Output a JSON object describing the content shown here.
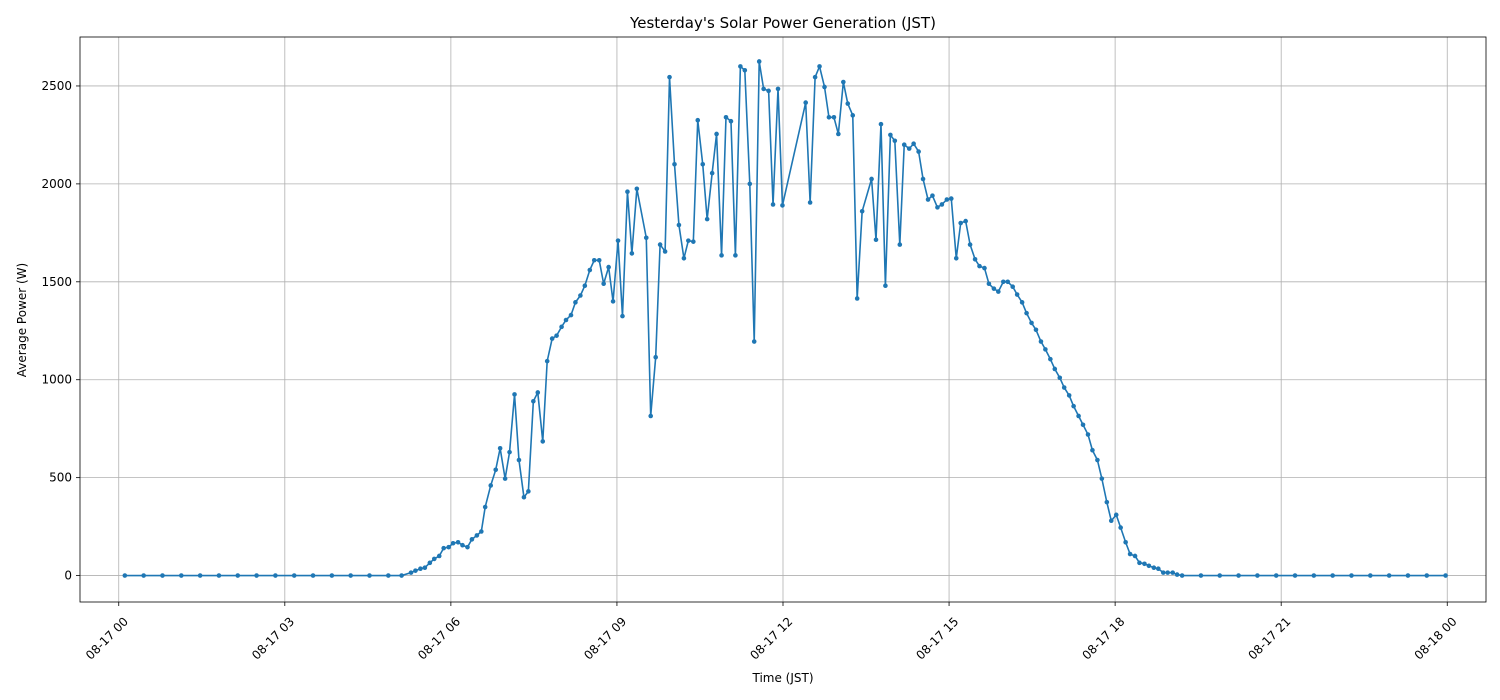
{
  "chart_data": {
    "type": "line",
    "title": "Yesterday's Solar Power Generation (JST)",
    "xlabel": "Time (JST)",
    "ylabel": "Average Power (W)",
    "x_unit": "hours since 08-17 00:00",
    "xlim": [
      -0.7,
      24.7
    ],
    "ylim": [
      -135,
      2750
    ],
    "x_ticks": [
      {
        "value": 0,
        "label": "08-17 00"
      },
      {
        "value": 3,
        "label": "08-17 03"
      },
      {
        "value": 6,
        "label": "08-17 06"
      },
      {
        "value": 9,
        "label": "08-17 09"
      },
      {
        "value": 12,
        "label": "08-17 12"
      },
      {
        "value": 15,
        "label": "08-17 15"
      },
      {
        "value": 18,
        "label": "08-17 18"
      },
      {
        "value": 21,
        "label": "08-17 21"
      },
      {
        "value": 24,
        "label": "08-18 00"
      }
    ],
    "y_ticks": [
      {
        "value": 0,
        "label": "0"
      },
      {
        "value": 500,
        "label": "500"
      },
      {
        "value": 1000,
        "label": "1000"
      },
      {
        "value": 1500,
        "label": "1500"
      },
      {
        "value": 2000,
        "label": "2000"
      },
      {
        "value": 2500,
        "label": "2500"
      }
    ],
    "grid": true,
    "marker": "circle",
    "color": "#1f77b4",
    "series": [
      {
        "points": [
          [
            0.11,
            0
          ],
          [
            0.45,
            0
          ],
          [
            0.79,
            0
          ],
          [
            1.13,
            0
          ],
          [
            1.47,
            0
          ],
          [
            1.81,
            0
          ],
          [
            2.15,
            0
          ],
          [
            2.49,
            0
          ],
          [
            2.83,
            0
          ],
          [
            3.17,
            0
          ],
          [
            3.51,
            0
          ],
          [
            3.85,
            0
          ],
          [
            4.19,
            0
          ],
          [
            4.53,
            0
          ],
          [
            4.87,
            0
          ],
          [
            5.11,
            0
          ],
          [
            5.28,
            15
          ],
          [
            5.36,
            25
          ],
          [
            5.45,
            35
          ],
          [
            5.53,
            40
          ],
          [
            5.62,
            65
          ],
          [
            5.7,
            85
          ],
          [
            5.79,
            100
          ],
          [
            5.87,
            140
          ],
          [
            5.96,
            145
          ],
          [
            6.04,
            165
          ],
          [
            6.13,
            170
          ],
          [
            6.21,
            155
          ],
          [
            6.3,
            145
          ],
          [
            6.38,
            185
          ],
          [
            6.47,
            205
          ],
          [
            6.55,
            225
          ],
          [
            6.62,
            350
          ],
          [
            6.72,
            460
          ],
          [
            6.81,
            540
          ],
          [
            6.89,
            650
          ],
          [
            6.98,
            495
          ],
          [
            7.06,
            630
          ],
          [
            7.15,
            925
          ],
          [
            7.23,
            590
          ],
          [
            7.32,
            400
          ],
          [
            7.4,
            430
          ],
          [
            7.49,
            890
          ],
          [
            7.57,
            935
          ],
          [
            7.66,
            685
          ],
          [
            7.74,
            1095
          ],
          [
            7.83,
            1210
          ],
          [
            7.91,
            1225
          ],
          [
            8.0,
            1270
          ],
          [
            8.08,
            1305
          ],
          [
            8.17,
            1330
          ],
          [
            8.25,
            1395
          ],
          [
            8.34,
            1430
          ],
          [
            8.42,
            1480
          ],
          [
            8.51,
            1560
          ],
          [
            8.59,
            1610
          ],
          [
            8.68,
            1610
          ],
          [
            8.76,
            1490
          ],
          [
            8.85,
            1575
          ],
          [
            8.93,
            1400
          ],
          [
            9.02,
            1710
          ],
          [
            9.1,
            1325
          ],
          [
            9.19,
            1960
          ],
          [
            9.27,
            1645
          ],
          [
            9.36,
            1975
          ],
          [
            9.53,
            1725
          ],
          [
            9.61,
            815
          ],
          [
            9.7,
            1115
          ],
          [
            9.78,
            1690
          ],
          [
            9.87,
            1655
          ],
          [
            9.95,
            2545
          ],
          [
            10.04,
            2100
          ],
          [
            10.12,
            1790
          ],
          [
            10.21,
            1620
          ],
          [
            10.29,
            1710
          ],
          [
            10.38,
            1705
          ],
          [
            10.46,
            2325
          ],
          [
            10.55,
            2100
          ],
          [
            10.63,
            1820
          ],
          [
            10.72,
            2055
          ],
          [
            10.8,
            2255
          ],
          [
            10.89,
            1635
          ],
          [
            10.97,
            2340
          ],
          [
            11.06,
            2320
          ],
          [
            11.14,
            1635
          ],
          [
            11.23,
            2600
          ],
          [
            11.31,
            2580
          ],
          [
            11.4,
            2000
          ],
          [
            11.48,
            1195
          ],
          [
            11.57,
            2625
          ],
          [
            11.65,
            2485
          ],
          [
            11.74,
            2475
          ],
          [
            11.82,
            1895
          ],
          [
            11.91,
            2485
          ],
          [
            11.99,
            1890
          ],
          [
            12.41,
            2415
          ],
          [
            12.49,
            1905
          ],
          [
            12.58,
            2545
          ],
          [
            12.66,
            2600
          ],
          [
            12.75,
            2495
          ],
          [
            12.83,
            2340
          ],
          [
            12.92,
            2340
          ],
          [
            13.0,
            2255
          ],
          [
            13.09,
            2520
          ],
          [
            13.17,
            2410
          ],
          [
            13.26,
            2350
          ],
          [
            13.34,
            1415
          ],
          [
            13.43,
            1860
          ],
          [
            13.6,
            2025
          ],
          [
            13.68,
            1715
          ],
          [
            13.77,
            2305
          ],
          [
            13.85,
            1480
          ],
          [
            13.94,
            2250
          ],
          [
            14.02,
            2220
          ],
          [
            14.11,
            1690
          ],
          [
            14.19,
            2200
          ],
          [
            14.28,
            2180
          ],
          [
            14.36,
            2205
          ],
          [
            14.45,
            2165
          ],
          [
            14.53,
            2025
          ],
          [
            14.62,
            1920
          ],
          [
            14.7,
            1940
          ],
          [
            14.79,
            1880
          ],
          [
            14.87,
            1895
          ],
          [
            14.96,
            1920
          ],
          [
            15.04,
            1925
          ],
          [
            15.13,
            1620
          ],
          [
            15.21,
            1800
          ],
          [
            15.3,
            1810
          ],
          [
            15.38,
            1690
          ],
          [
            15.47,
            1615
          ],
          [
            15.55,
            1580
          ],
          [
            15.64,
            1570
          ],
          [
            15.72,
            1490
          ],
          [
            15.81,
            1465
          ],
          [
            15.89,
            1450
          ],
          [
            15.98,
            1500
          ],
          [
            16.06,
            1500
          ],
          [
            16.15,
            1475
          ],
          [
            16.23,
            1435
          ],
          [
            16.32,
            1395
          ],
          [
            16.4,
            1340
          ],
          [
            16.49,
            1290
          ],
          [
            16.57,
            1255
          ],
          [
            16.66,
            1195
          ],
          [
            16.74,
            1155
          ],
          [
            16.83,
            1105
          ],
          [
            16.91,
            1055
          ],
          [
            17.0,
            1010
          ],
          [
            17.08,
            960
          ],
          [
            17.17,
            920
          ],
          [
            17.25,
            865
          ],
          [
            17.34,
            815
          ],
          [
            17.42,
            770
          ],
          [
            17.51,
            720
          ],
          [
            17.59,
            640
          ],
          [
            17.68,
            590
          ],
          [
            17.76,
            495
          ],
          [
            17.85,
            375
          ],
          [
            17.93,
            280
          ],
          [
            18.02,
            310
          ],
          [
            18.1,
            245
          ],
          [
            18.19,
            170
          ],
          [
            18.27,
            110
          ],
          [
            18.36,
            100
          ],
          [
            18.44,
            65
          ],
          [
            18.53,
            60
          ],
          [
            18.61,
            50
          ],
          [
            18.7,
            40
          ],
          [
            18.78,
            35
          ],
          [
            18.87,
            15
          ],
          [
            18.95,
            15
          ],
          [
            19.04,
            15
          ],
          [
            19.12,
            5
          ],
          [
            19.21,
            0
          ],
          [
            19.55,
            0
          ],
          [
            19.89,
            0
          ],
          [
            20.23,
            0
          ],
          [
            20.57,
            0
          ],
          [
            20.91,
            0
          ],
          [
            21.25,
            0
          ],
          [
            21.59,
            0
          ],
          [
            21.93,
            0
          ],
          [
            22.27,
            0
          ],
          [
            22.61,
            0
          ],
          [
            22.95,
            0
          ],
          [
            23.29,
            0
          ],
          [
            23.63,
            0
          ],
          [
            23.97,
            0
          ]
        ]
      }
    ]
  }
}
